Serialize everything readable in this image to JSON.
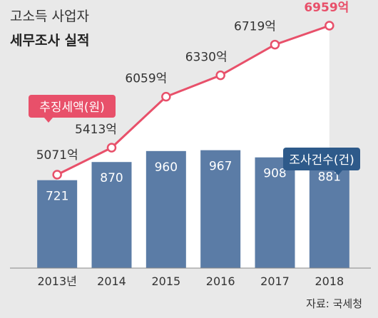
{
  "header": {
    "subtitle": "고소득 사업자",
    "title": "세무조사 실적"
  },
  "source": "자료: 국세청",
  "colors": {
    "line": "#e8506a",
    "bar": "#5b7ca6",
    "background": "#e9e9e9",
    "area": "#ffffff",
    "badge_line": "#e8506a",
    "badge_bar": "#2e5a8a"
  },
  "chart_data": [
    {
      "type": "line",
      "series": [
        {
          "name": "추징세액(원)",
          "categories": [
            "2013년",
            "2014",
            "2015",
            "2016",
            "2017",
            "2018"
          ],
          "values": [
            5071,
            5413,
            6059,
            6330,
            6719,
            6959
          ],
          "labels": [
            "5071억",
            "5413억",
            "6059억",
            "6330억",
            "6719억",
            "6959억"
          ]
        }
      ]
    },
    {
      "type": "bar",
      "categories": [
        "2013년",
        "2014",
        "2015",
        "2016",
        "2017",
        "2018"
      ],
      "series": [
        {
          "name": "조사건수(건)",
          "values": [
            721,
            870,
            960,
            967,
            908,
            881
          ]
        }
      ]
    }
  ]
}
